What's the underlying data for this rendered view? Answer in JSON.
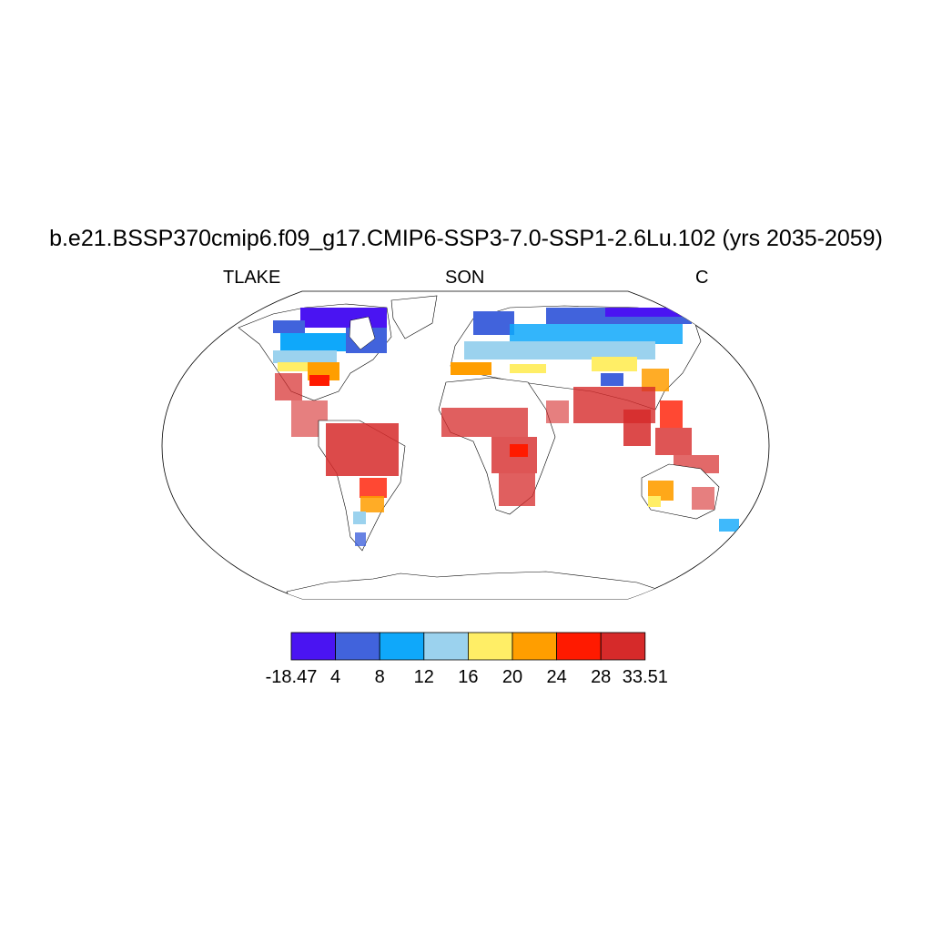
{
  "title": "b.e21.BSSP370cmip6.f09_g17.CMIP6-SSP3-7.0-SSP1-2.6Lu.102 (yrs 2035-2059)",
  "subtitles": {
    "left": "TLAKE",
    "center": "SON",
    "right": "C"
  },
  "colorbar": {
    "colors": [
      "#4a14f2",
      "#4163dc",
      "#0fa8fa",
      "#9bd2ee",
      "#ffee66",
      "#ff9e00",
      "#ff1a00",
      "#d62a2a"
    ],
    "labels": [
      "-18.47",
      "4",
      "8",
      "12",
      "16",
      "20",
      "24",
      "28",
      "33.51"
    ]
  },
  "map": {
    "projection": "robinson",
    "field": "TLAKE",
    "units": "C",
    "season": "SON"
  }
}
